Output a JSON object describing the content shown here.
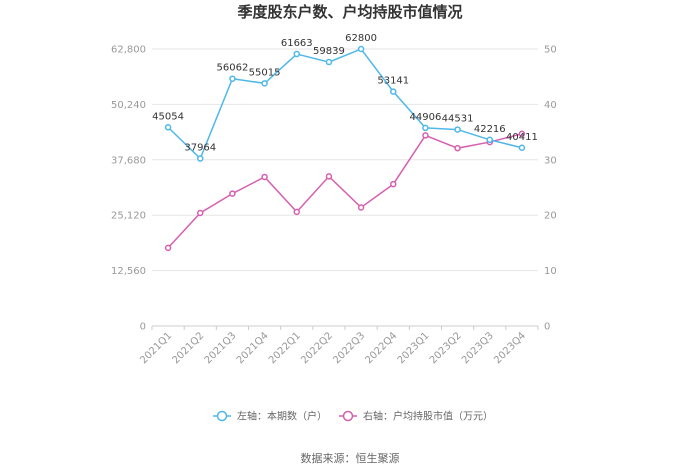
{
  "chart_data": {
    "type": "line",
    "title": "季度股东户数、户均持股市值情况",
    "categories": [
      "2021Q1",
      "2021Q2",
      "2021Q3",
      "2021Q4",
      "2022Q1",
      "2022Q2",
      "2022Q3",
      "2022Q4",
      "2023Q1",
      "2023Q2",
      "2023Q3",
      "2023Q4"
    ],
    "left_axis": {
      "ticks": [
        "0",
        "12,560",
        "25,120",
        "37,680",
        "50,240",
        "62,800"
      ],
      "ylim": [
        0,
        62800
      ]
    },
    "right_axis": {
      "ticks": [
        "0",
        "10",
        "20",
        "30",
        "40",
        "50"
      ],
      "ylim": [
        0,
        50
      ]
    },
    "series": [
      {
        "name": "左轴：本期数（户）",
        "axis": "left",
        "color": "#4fb8e8",
        "values": [
          45054,
          37964,
          56062,
          55015,
          61663,
          59839,
          62800,
          53141,
          44906,
          44531,
          42216,
          40411
        ],
        "labels": [
          "45054",
          "37964",
          "56062",
          "55015",
          "61663",
          "59839",
          "62800",
          "53141",
          "44906",
          "44531",
          "42216",
          "40411"
        ]
      },
      {
        "name": "右轴：户均持股市值（万元）",
        "axis": "right",
        "color": "#d65fb0",
        "values": [
          14.1,
          20.4,
          23.9,
          26.9,
          20.6,
          27.0,
          21.4,
          25.6,
          34.4,
          32.1,
          33.2,
          34.7
        ]
      }
    ],
    "grid": true,
    "legend_position": "bottom"
  },
  "source": "数据来源：恒生聚源"
}
